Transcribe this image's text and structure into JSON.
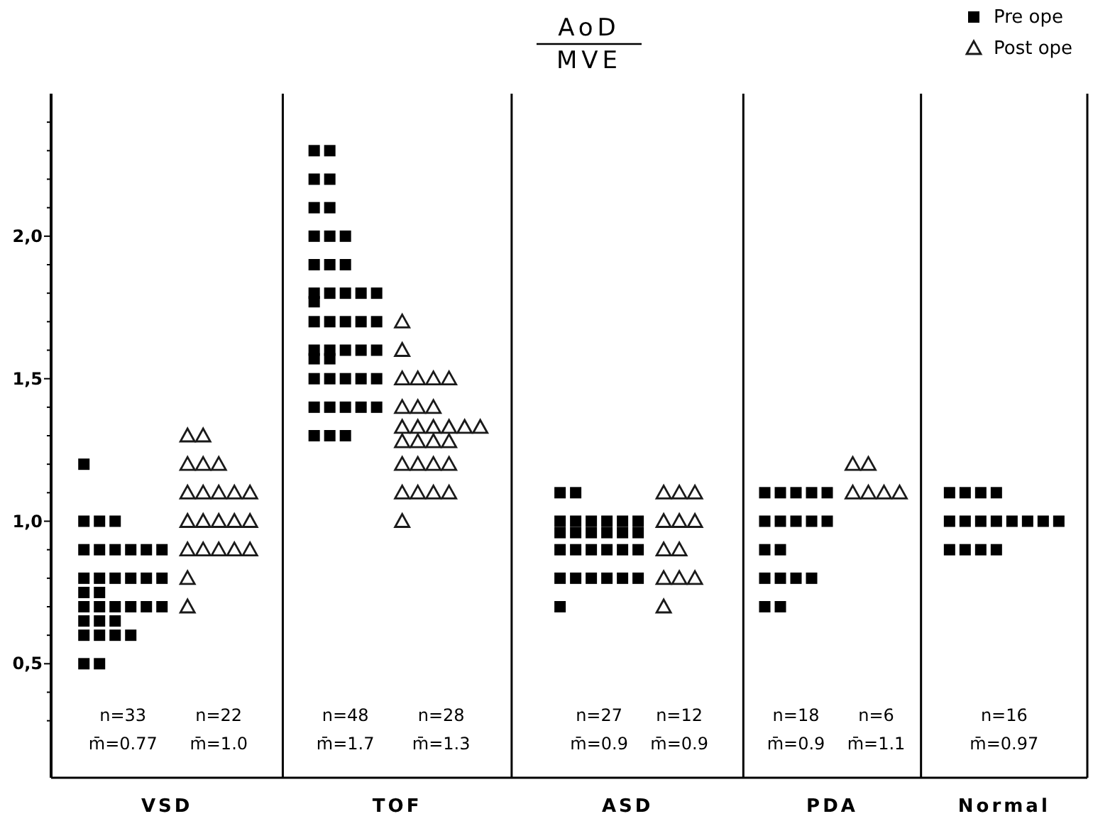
{
  "chart_data": {
    "type": "scatter",
    "title": "AoD",
    "subtitle": "MVE",
    "categories": [
      "VSD",
      "TOF",
      "ASD",
      "PDA",
      "Normal"
    ],
    "series": [
      {
        "name": "Pre ope",
        "color": "#000000",
        "marker": "square",
        "x": [
          "VSD",
          "VSD",
          "VSD",
          "VSD",
          "VSD",
          "VSD",
          "VSD",
          "VSD",
          "VSD",
          "VSD",
          "VSD",
          "VSD",
          "VSD",
          "VSD",
          "VSD",
          "VSD",
          "VSD",
          "VSD",
          "VSD",
          "VSD",
          "VSD",
          "VSD",
          "VSD",
          "VSD",
          "VSD",
          "VSD",
          "VSD",
          "VSD",
          "VSD",
          "VSD",
          "VSD",
          "VSD",
          "VSD",
          "TOF",
          "TOF",
          "TOF",
          "TOF",
          "TOF",
          "TOF",
          "TOF",
          "TOF",
          "TOF",
          "TOF",
          "TOF",
          "TOF",
          "TOF",
          "TOF",
          "TOF",
          "TOF",
          "TOF",
          "TOF",
          "TOF",
          "TOF",
          "TOF",
          "TOF",
          "TOF",
          "TOF",
          "TOF",
          "TOF",
          "TOF",
          "TOF",
          "TOF",
          "TOF",
          "TOF",
          "TOF",
          "TOF",
          "TOF",
          "TOF",
          "TOF",
          "TOF",
          "TOF",
          "TOF",
          "TOF",
          "TOF",
          "TOF",
          "TOF",
          "ASD",
          "ASD",
          "ASD",
          "ASD",
          "ASD",
          "ASD",
          "ASD",
          "ASD",
          "ASD",
          "ASD",
          "ASD",
          "ASD",
          "ASD",
          "ASD",
          "ASD",
          "ASD",
          "ASD",
          "ASD",
          "ASD",
          "ASD",
          "ASD",
          "ASD",
          "ASD",
          "ASD",
          "ASD",
          "ASD",
          "ASD",
          "PDA",
          "PDA",
          "PDA",
          "PDA",
          "PDA",
          "PDA",
          "PDA",
          "PDA",
          "PDA",
          "PDA",
          "PDA",
          "PDA",
          "PDA",
          "PDA",
          "PDA",
          "PDA",
          "PDA",
          "PDA",
          "Normal",
          "Normal",
          "Normal",
          "Normal",
          "Normal",
          "Normal",
          "Normal",
          "Normal",
          "Normal",
          "Normal",
          "Normal",
          "Normal",
          "Normal",
          "Normal",
          "Normal",
          "Normal"
        ],
        "values": [
          1.2,
          1.0,
          1.0,
          1.0,
          0.9,
          0.9,
          0.9,
          0.9,
          0.9,
          0.9,
          0.8,
          0.8,
          0.8,
          0.8,
          0.8,
          0.8,
          0.75,
          0.75,
          0.7,
          0.7,
          0.7,
          0.7,
          0.7,
          0.7,
          0.65,
          0.65,
          0.65,
          0.6,
          0.6,
          0.6,
          0.6,
          0.5,
          0.5,
          2.3,
          2.3,
          2.2,
          2.2,
          2.1,
          2.1,
          2.0,
          2.0,
          2.0,
          1.9,
          1.9,
          1.9,
          1.8,
          1.8,
          1.8,
          1.8,
          1.8,
          1.77,
          1.7,
          1.7,
          1.7,
          1.7,
          1.7,
          1.6,
          1.6,
          1.6,
          1.6,
          1.6,
          1.57,
          1.57,
          1.5,
          1.5,
          1.5,
          1.5,
          1.5,
          1.4,
          1.4,
          1.4,
          1.4,
          1.4,
          1.3,
          1.3,
          1.3,
          1.1,
          1.1,
          1.0,
          1.0,
          1.0,
          1.0,
          1.0,
          1.0,
          0.96,
          0.96,
          0.96,
          0.96,
          0.96,
          0.96,
          0.9,
          0.9,
          0.9,
          0.9,
          0.9,
          0.9,
          0.8,
          0.8,
          0.8,
          0.8,
          0.8,
          0.8,
          0.7,
          1.1,
          1.1,
          1.1,
          1.1,
          1.1,
          1.0,
          1.0,
          1.0,
          1.0,
          1.0,
          0.9,
          0.9,
          0.8,
          0.8,
          0.8,
          0.8,
          0.7,
          0.7,
          1.1,
          1.1,
          1.1,
          1.1,
          1.0,
          1.0,
          1.0,
          1.0,
          1.0,
          1.0,
          1.0,
          1.0,
          0.9,
          0.9,
          0.9,
          0.9
        ]
      },
      {
        "name": "Post ope",
        "color": "#1a1a1a",
        "marker": "triangle",
        "x": [
          "VSD",
          "VSD",
          "VSD",
          "VSD",
          "VSD",
          "VSD",
          "VSD",
          "VSD",
          "VSD",
          "VSD",
          "VSD",
          "VSD",
          "VSD",
          "VSD",
          "VSD",
          "VSD",
          "VSD",
          "VSD",
          "VSD",
          "VSD",
          "VSD",
          "VSD",
          "TOF",
          "TOF",
          "TOF",
          "TOF",
          "TOF",
          "TOF",
          "TOF",
          "TOF",
          "TOF",
          "TOF",
          "TOF",
          "TOF",
          "TOF",
          "TOF",
          "TOF",
          "TOF",
          "TOF",
          "TOF",
          "TOF",
          "TOF",
          "TOF",
          "TOF",
          "TOF",
          "TOF",
          "TOF",
          "TOF",
          "TOF",
          "TOF",
          "ASD",
          "ASD",
          "ASD",
          "ASD",
          "ASD",
          "ASD",
          "ASD",
          "ASD",
          "ASD",
          "ASD",
          "ASD",
          "ASD",
          "PDA",
          "PDA",
          "PDA",
          "PDA",
          "PDA",
          "PDA"
        ],
        "values": [
          1.3,
          1.3,
          1.2,
          1.2,
          1.2,
          1.1,
          1.1,
          1.1,
          1.1,
          1.1,
          1.0,
          1.0,
          1.0,
          1.0,
          1.0,
          0.9,
          0.9,
          0.9,
          0.9,
          0.9,
          0.8,
          0.7,
          1.7,
          1.6,
          1.5,
          1.5,
          1.5,
          1.5,
          1.4,
          1.4,
          1.4,
          1.33,
          1.33,
          1.33,
          1.33,
          1.33,
          1.33,
          1.28,
          1.28,
          1.28,
          1.28,
          1.2,
          1.2,
          1.2,
          1.2,
          1.1,
          1.1,
          1.1,
          1.1,
          1.0,
          1.1,
          1.1,
          1.1,
          1.0,
          1.0,
          1.0,
          0.9,
          0.9,
          0.8,
          0.8,
          0.8,
          0.7,
          1.2,
          1.2,
          1.1,
          1.1,
          1.1,
          1.1
        ]
      }
    ],
    "ylim": [
      0.1,
      2.5
    ],
    "yticks": [
      {
        "value": 0.3,
        "label": null
      },
      {
        "value": 0.4,
        "label": null
      },
      {
        "value": 0.5,
        "label": "0,5"
      },
      {
        "value": 0.6,
        "label": null
      },
      {
        "value": 0.7,
        "label": null
      },
      {
        "value": 0.8,
        "label": null
      },
      {
        "value": 0.9,
        "label": null
      },
      {
        "value": 1.0,
        "label": "1,0"
      },
      {
        "value": 1.1,
        "label": null
      },
      {
        "value": 1.2,
        "label": null
      },
      {
        "value": 1.3,
        "label": null
      },
      {
        "value": 1.4,
        "label": null
      },
      {
        "value": 1.5,
        "label": "1,5"
      },
      {
        "value": 1.6,
        "label": null
      },
      {
        "value": 1.7,
        "label": null
      },
      {
        "value": 1.8,
        "label": null
      },
      {
        "value": 1.9,
        "label": null
      },
      {
        "value": 2.0,
        "label": "2,0"
      },
      {
        "value": 2.1,
        "label": null
      },
      {
        "value": 2.2,
        "label": null
      },
      {
        "value": 2.3,
        "label": null
      },
      {
        "value": 2.4,
        "label": null
      }
    ],
    "legend": "top right",
    "annotations": [
      "n=33",
      "m̄=0.77",
      "n=22",
      "m̄=1.0",
      "n=48",
      "m̄=1.7",
      "n=28",
      "m̄=1.3",
      "n=27",
      "m̄=0.9",
      "n=12",
      "m̄=0.9",
      "n=18",
      "m̄=0.9",
      "n=6",
      "m̄=1.1",
      "n=16",
      "m̄=0.97"
    ]
  }
}
